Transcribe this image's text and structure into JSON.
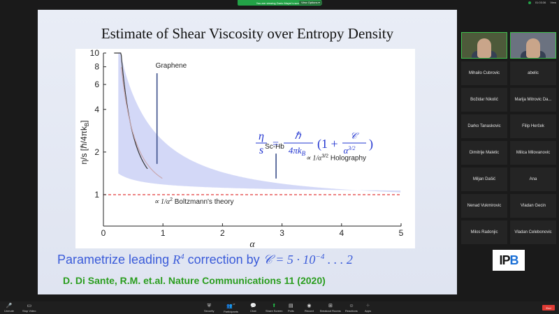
{
  "banner": {
    "text": "You are viewing Dario Mayer's screen",
    "view_options": "View Options ▾"
  },
  "top_right": {
    "time": "01:03:36",
    "view_label": "View"
  },
  "slide": {
    "title": "Estimate of Shear Viscosity over Entropy Density",
    "formula_eta": "η",
    "formula_s": "s",
    "formula_hbar": "ℏ",
    "formula_denom": "4πk",
    "formula_sub_b": "B",
    "formula_rhs_open": "(1 +",
    "formula_c": "𝒞",
    "formula_alpha": "α",
    "formula_exp": "3/2",
    "formula_rhs_close": ")",
    "caption_a": "Parametrize leading ",
    "caption_r": "R",
    "caption_r_exp": "4",
    "caption_b": " correction by ",
    "caption_math": "𝒞 = 5 · 10",
    "caption_exp": "−4",
    "caption_tail": " . . . 2",
    "citation": "D. Di Sante, R.M. et.al. Nature Communications 11 (2020)"
  },
  "participants": {
    "names": [
      "Mihailo Cubrovic",
      "abelic",
      "Božidar Nikolić",
      "Marija Mitrovic Da...",
      "Darko Tanaskovic",
      "Filip Herček",
      "Dimitrije Maletic",
      "Milica Milovanovic",
      "Miljan Dašić",
      "Ana",
      "Nenad Vukmirovic",
      "Vladan Gecin",
      "Milos Radonjic",
      "Vladan Celebonovic"
    ],
    "logo_text": "IP",
    "logo_num": "B"
  },
  "toolbar": {
    "unmute": "Unmute",
    "stop_video": "Stop Video",
    "security": "Security",
    "participants": "Participants",
    "participants_count": "17",
    "chat": "Chat",
    "share_screen": "Share Screen",
    "polls": "Polls",
    "record": "Record",
    "breakout": "Breakout Rooms",
    "reactions": "Reactions",
    "apps": "Apps",
    "end": "End"
  },
  "chart_data": {
    "type": "line",
    "xlabel": "α",
    "ylabel": "η/s [ℏ/4πk",
    "ylabel_sub": "B",
    "ylabel_close": "]",
    "xlim": [
      0,
      5
    ],
    "ylim": [
      0.6,
      10
    ],
    "y_scale": "log",
    "x_ticks": [
      0,
      1,
      2,
      3,
      4,
      5
    ],
    "y_ticks": [
      1,
      2,
      4,
      6,
      8,
      10
    ],
    "labels": {
      "graphene": "Graphene",
      "schb": "Sc-Hb",
      "holography": "∝ 1/α",
      "holography_exp": "3/2",
      "holography_tail": " Holography",
      "boltzmann": "∝ 1/α",
      "boltzmann_exp": "2",
      "boltzmann_tail": " Boltzmann's theory"
    },
    "bars": [
      {
        "name": "Graphene",
        "x": 0.9,
        "y_low": 1.65,
        "y_high": 7.2
      },
      {
        "name": "Sc-Hb",
        "x": 2.9,
        "y_low": 1.3,
        "y_high": 1.95
      }
    ],
    "colors": {
      "band": "#d3d8f7",
      "bar": "#3b4f8a",
      "dashed": "#e23b3b",
      "dark_curve": "#333333",
      "pink_curve": "#c8a8b0",
      "formula": "#2235d0"
    }
  }
}
